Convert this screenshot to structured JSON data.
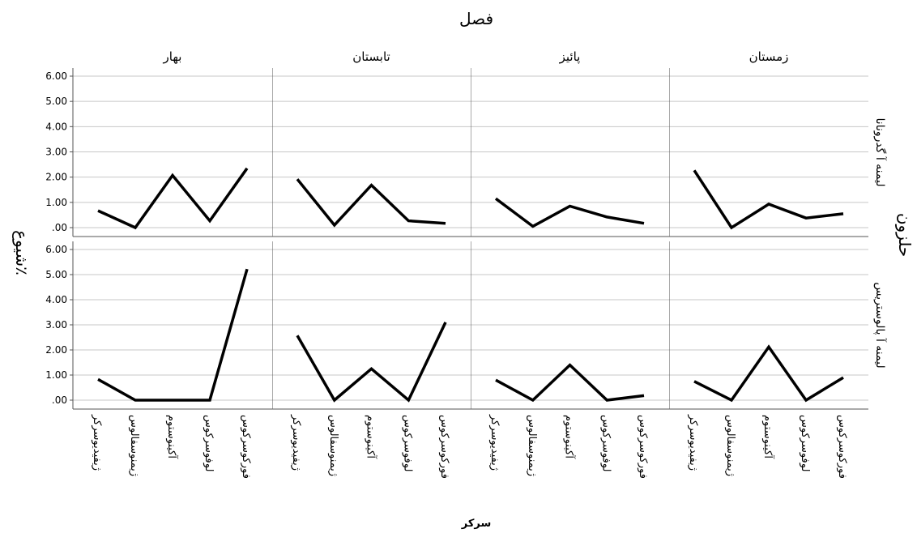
{
  "chart_data": {
    "type": "line",
    "title": "فصل",
    "xlabel": "سرکر",
    "ylabel": "شیوع٪",
    "row_axis_title": "حلزون",
    "columns": [
      "زمستان",
      "پائیز",
      "تابستان",
      "بهار"
    ],
    "rows": [
      "لیمنه آ گدرونانا",
      "لیمنه آ پالوستریس"
    ],
    "categories": [
      "فورکوسرکوس",
      "لوفوسرکوس",
      "آکینوستوم",
      "ژیمنوسفالوس",
      "ژیفیدیوسرکر"
    ],
    "ylim": [
      0,
      6
    ],
    "yticks": [
      ".00",
      "1.00",
      "2.00",
      "3.00",
      "4.00",
      "5.00",
      "6.00"
    ],
    "grid": true,
    "series": [
      {
        "row": "لیمنه آ گدرونانا",
        "column": "زمستان",
        "values": [
          0.55,
          0.38,
          0.93,
          0.0,
          2.27
        ]
      },
      {
        "row": "لیمنه آ گدرونانا",
        "column": "پائیز",
        "values": [
          0.17,
          0.42,
          0.85,
          0.05,
          1.15
        ]
      },
      {
        "row": "لیمنه آ گدرونانا",
        "column": "تابستان",
        "values": [
          0.17,
          0.27,
          1.68,
          0.1,
          1.92
        ]
      },
      {
        "row": "لیمنه آ گدرونانا",
        "column": "بهار",
        "values": [
          2.35,
          0.27,
          2.07,
          0.0,
          0.67
        ]
      },
      {
        "row": "لیمنه آ پالوستریس",
        "column": "زمستان",
        "values": [
          0.9,
          0.0,
          2.12,
          0.0,
          0.75
        ]
      },
      {
        "row": "لیمنه آ پالوستریس",
        "column": "پائیز",
        "values": [
          0.18,
          0.0,
          1.4,
          0.0,
          0.8
        ]
      },
      {
        "row": "لیمنه آ پالوستریس",
        "column": "تابستان",
        "values": [
          3.1,
          0.0,
          1.25,
          0.0,
          2.57
        ]
      },
      {
        "row": "لیمنه آ پالوستریس",
        "column": "بهار",
        "values": [
          5.22,
          0.0,
          0.0,
          0.0,
          0.83
        ]
      }
    ]
  }
}
